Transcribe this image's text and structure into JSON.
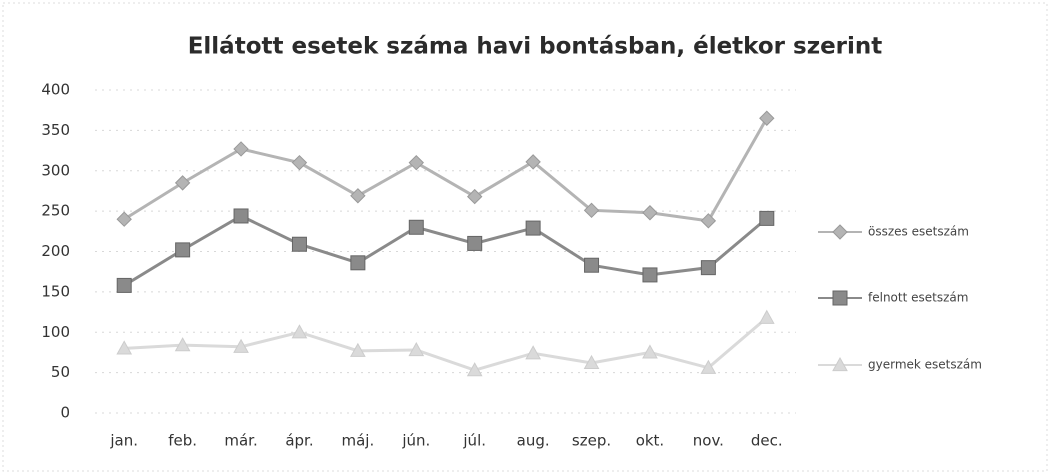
{
  "chart_data": {
    "type": "line",
    "title": "Ellátott esetek száma havi bontásban, életkor szerint",
    "categories": [
      "jan.",
      "feb.",
      "már.",
      "ápr.",
      "máj.",
      "jún.",
      "júl.",
      "aug.",
      "szep.",
      "okt.",
      "nov.",
      "dec."
    ],
    "series": [
      {
        "name": "összes esetszám",
        "color": "#b4b4b4",
        "marker": "diamond",
        "values": [
          240,
          285,
          327,
          310,
          269,
          310,
          268,
          311,
          251,
          248,
          238,
          365
        ]
      },
      {
        "name": "felnott esetszám",
        "color": "#8a8a8a",
        "marker": "square",
        "values": [
          158,
          202,
          244,
          209,
          186,
          230,
          210,
          229,
          183,
          171,
          180,
          241
        ]
      },
      {
        "name": "gyermek esetszám",
        "color": "#dadada",
        "marker": "triangle",
        "values": [
          80,
          84,
          82,
          100,
          77,
          78,
          53,
          74,
          62,
          75,
          56,
          118
        ]
      }
    ],
    "ylim": [
      0,
      400
    ],
    "yticks": [
      0,
      50,
      100,
      150,
      200,
      250,
      300,
      350,
      400
    ],
    "grid": true
  }
}
